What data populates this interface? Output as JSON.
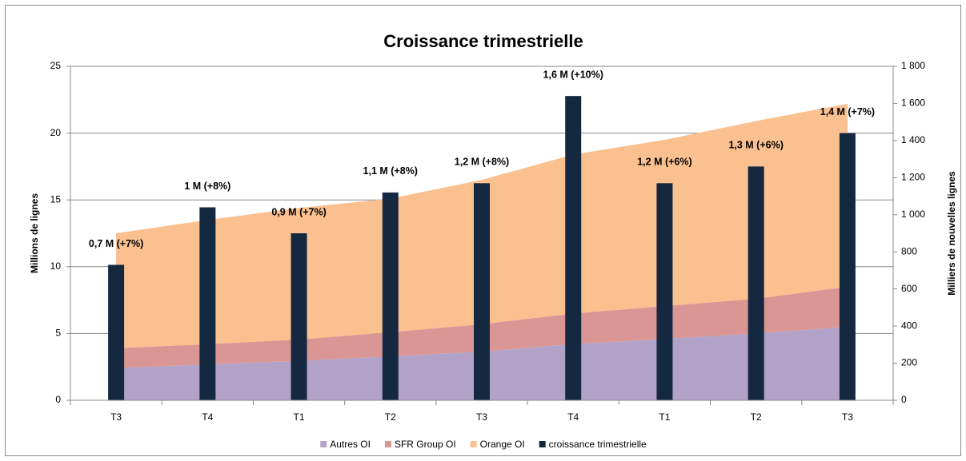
{
  "chart_data": {
    "type": "stacked-area-bar",
    "title": "Croissance trimestrielle",
    "y_label": "Millions de lignes",
    "y2_label": "Milliers de nouvelles lignes",
    "categories": [
      "T3",
      "T4",
      "T1",
      "T2",
      "T3",
      "T4",
      "T1",
      "T2",
      "T3"
    ],
    "ylim": [
      0,
      25
    ],
    "yticks": [
      0,
      5,
      10,
      15,
      20,
      25
    ],
    "y2lim": [
      0,
      1800
    ],
    "y2ticks": [
      0,
      200,
      400,
      600,
      800,
      {
        "value": 1000,
        "label": "1 000"
      },
      {
        "value": 1200,
        "label": "1 200"
      },
      {
        "value": 1400,
        "label": "1 400"
      },
      {
        "value": 1600,
        "label": "1 600"
      },
      {
        "value": 1800,
        "label": "1 800"
      }
    ],
    "grid": true,
    "legend": "bottom",
    "series": [
      {
        "name": "Autres OI",
        "kind": "area",
        "color": "#b3a2c7",
        "values": [
          2.4,
          2.7,
          2.95,
          3.3,
          3.65,
          4.2,
          4.6,
          5.0,
          5.5
        ]
      },
      {
        "name": "SFR Group OI",
        "kind": "area",
        "color": "#d99694",
        "values": [
          1.5,
          1.5,
          1.6,
          1.8,
          2.05,
          2.3,
          2.45,
          2.6,
          3.0
        ]
      },
      {
        "name": "Orange OI",
        "kind": "area",
        "color": "#fac090",
        "values": [
          8.6,
          9.3,
          9.85,
          10.0,
          10.8,
          11.9,
          12.45,
          13.3,
          13.7
        ]
      },
      {
        "name": "croissance trimestrielle",
        "kind": "bar",
        "axis": "y2",
        "color": "#142840",
        "values": [
          730,
          1040,
          900,
          1120,
          1170,
          1640,
          1170,
          1260,
          1440
        ],
        "value_labels": [
          "0,7 M (+7%)",
          "1 M (+8%)",
          "0,9 M (+7%)",
          "1,1 M (+8%)",
          "1,2 M (+8%)",
          "1,6 M (+10%)",
          "1,2 M (+6%)",
          "1,3 M (+6%)",
          "1,4 M (+7%)"
        ]
      }
    ]
  }
}
